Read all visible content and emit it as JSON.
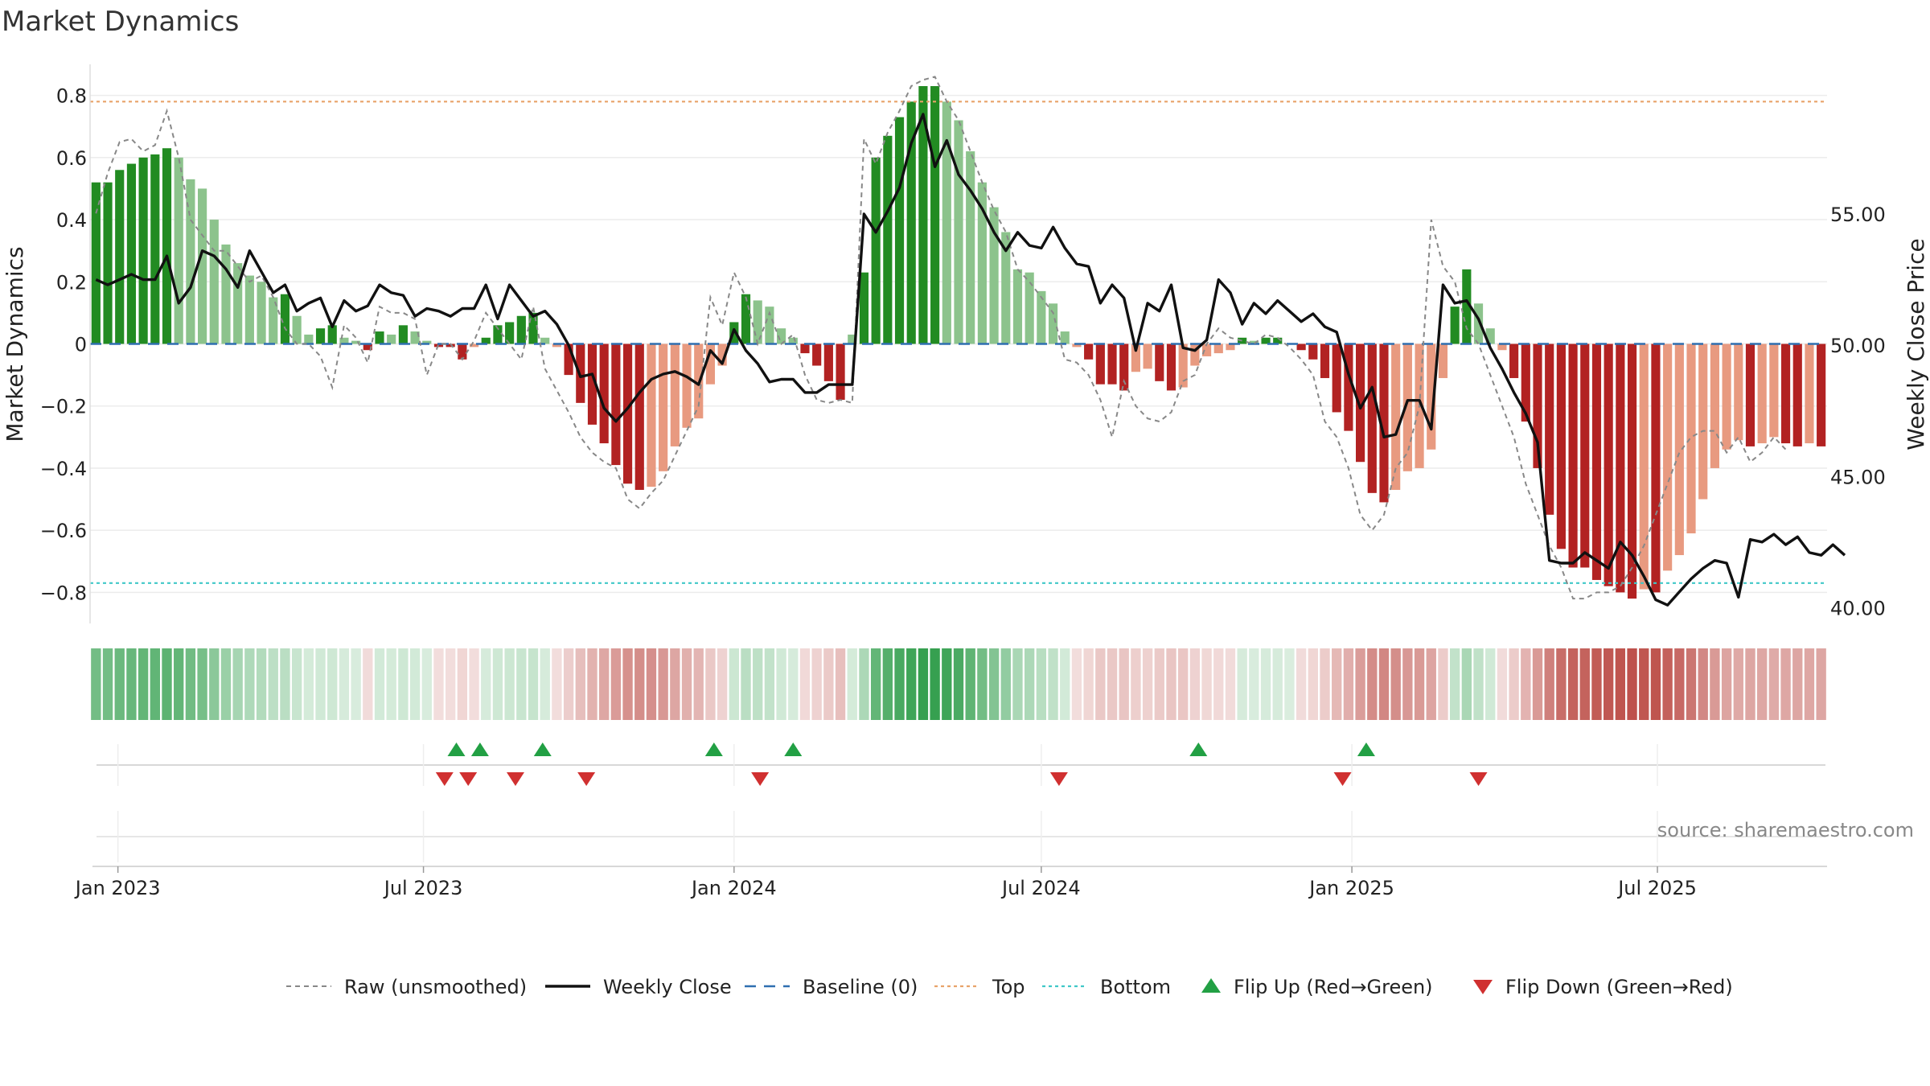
{
  "title": "Market Dynamics",
  "source_text": "source: sharemaestro.com",
  "chart_data": {
    "type": "bar",
    "title": "Market Dynamics",
    "ylabel": "Market Dynamics",
    "y2label": "Weekly Close Price",
    "ylim": [
      -0.9,
      0.9
    ],
    "y2lim": [
      39.4,
      60.7
    ],
    "yticks": [
      {
        "v": 0.8,
        "label": "0.8"
      },
      {
        "v": 0.6,
        "label": "0.6"
      },
      {
        "v": 0.4,
        "label": "0.4"
      },
      {
        "v": 0.2,
        "label": "0.2"
      },
      {
        "v": 0,
        "label": "0"
      },
      {
        "v": -0.2,
        "label": "−0.2"
      },
      {
        "v": -0.4,
        "label": "−0.4"
      },
      {
        "v": -0.6,
        "label": "−0.6"
      },
      {
        "v": -0.8,
        "label": "−0.8"
      }
    ],
    "y2ticks": [
      {
        "v": 55,
        "label": "55.00"
      },
      {
        "v": 50,
        "label": "50.00"
      },
      {
        "v": 45,
        "label": "45.00"
      },
      {
        "v": 40,
        "label": "40.00"
      }
    ],
    "xticks": [
      {
        "date": "2023-01-01",
        "label": "Jan 2023"
      },
      {
        "date": "2023-07-01",
        "label": "Jul 2023"
      },
      {
        "date": "2024-01-01",
        "label": "Jan 2024"
      },
      {
        "date": "2024-07-01",
        "label": "Jul 2024"
      },
      {
        "date": "2025-01-01",
        "label": "Jan 2025"
      },
      {
        "date": "2025-07-01",
        "label": "Jul 2025"
      }
    ],
    "start_week": "2022-12-19",
    "dynamics": [
      0.52,
      0.52,
      0.56,
      0.58,
      0.6,
      0.61,
      0.63,
      0.6,
      0.53,
      0.5,
      0.4,
      0.32,
      0.26,
      0.22,
      0.2,
      0.15,
      0.16,
      0.09,
      0.03,
      0.05,
      0.06,
      0.02,
      0.01,
      -0.02,
      0.04,
      0.03,
      0.06,
      0.04,
      0.01,
      -0.01,
      -0.01,
      -0.05,
      -0.01,
      0.02,
      0.06,
      0.07,
      0.09,
      0.1,
      0.02,
      -0.01,
      -0.1,
      -0.19,
      -0.26,
      -0.32,
      -0.39,
      -0.45,
      -0.47,
      -0.46,
      -0.41,
      -0.33,
      -0.27,
      -0.24,
      -0.13,
      -0.07,
      0.07,
      0.16,
      0.14,
      0.12,
      0.05,
      0.02,
      -0.03,
      -0.07,
      -0.12,
      -0.18,
      0.03,
      0.23,
      0.6,
      0.67,
      0.73,
      0.78,
      0.83,
      0.83,
      0.78,
      0.72,
      0.62,
      0.52,
      0.44,
      0.36,
      0.24,
      0.23,
      0.17,
      0.13,
      0.04,
      -0.01,
      -0.05,
      -0.13,
      -0.13,
      -0.15,
      -0.09,
      -0.08,
      -0.12,
      -0.15,
      -0.14,
      -0.07,
      -0.04,
      -0.03,
      -0.02,
      0.02,
      0.01,
      0.02,
      0.02,
      0.0,
      -0.02,
      -0.05,
      -0.11,
      -0.22,
      -0.28,
      -0.38,
      -0.48,
      -0.51,
      -0.47,
      -0.41,
      -0.4,
      -0.34,
      -0.11,
      0.12,
      0.24,
      0.13,
      0.05,
      -0.02,
      -0.11,
      -0.25,
      -0.4,
      -0.55,
      -0.66,
      -0.72,
      -0.72,
      -0.76,
      -0.78,
      -0.8,
      -0.82,
      -0.79,
      -0.8,
      -0.73,
      -0.68,
      -0.61,
      -0.5,
      -0.4,
      -0.34,
      -0.31,
      -0.33,
      -0.32,
      -0.3,
      -0.32,
      -0.33,
      -0.32,
      -0.33
    ],
    "raw": [
      0.42,
      0.55,
      0.65,
      0.66,
      0.62,
      0.64,
      0.75,
      0.6,
      0.4,
      0.35,
      0.3,
      0.3,
      0.25,
      0.2,
      0.22,
      0.15,
      0.05,
      0.0,
      0.0,
      -0.04,
      -0.14,
      0.06,
      0.02,
      -0.06,
      0.12,
      0.1,
      0.1,
      0.08,
      -0.1,
      0.0,
      0.0,
      -0.05,
      0.01,
      0.1,
      0.05,
      0.0,
      -0.05,
      0.12,
      -0.08,
      -0.15,
      -0.22,
      -0.3,
      -0.35,
      -0.38,
      -0.4,
      -0.5,
      -0.53,
      -0.48,
      -0.44,
      -0.36,
      -0.28,
      -0.2,
      0.15,
      0.06,
      0.23,
      0.15,
      0.0,
      0.1,
      0.0,
      0.03,
      -0.1,
      -0.18,
      -0.19,
      -0.18,
      -0.19,
      0.66,
      0.58,
      0.68,
      0.75,
      0.83,
      0.85,
      0.86,
      0.78,
      0.72,
      0.62,
      0.52,
      0.43,
      0.36,
      0.24,
      0.2,
      0.15,
      0.1,
      -0.05,
      -0.06,
      -0.1,
      -0.18,
      -0.3,
      -0.12,
      -0.2,
      -0.24,
      -0.25,
      -0.22,
      -0.12,
      -0.1,
      0.0,
      0.05,
      0.02,
      0.01,
      0.0,
      0.03,
      0.02,
      -0.01,
      -0.05,
      -0.1,
      -0.25,
      -0.3,
      -0.4,
      -0.55,
      -0.6,
      -0.55,
      -0.4,
      -0.35,
      -0.2,
      0.4,
      0.25,
      0.2,
      0.05,
      0.0,
      -0.1,
      -0.2,
      -0.3,
      -0.45,
      -0.55,
      -0.65,
      -0.72,
      -0.82,
      -0.82,
      -0.8,
      -0.8,
      -0.78,
      -0.72,
      -0.65,
      -0.55,
      -0.45,
      -0.35,
      -0.3,
      -0.28,
      -0.28,
      -0.35,
      -0.3,
      -0.38,
      -0.35,
      -0.3,
      -0.34
    ],
    "close": [
      52.5,
      52.3,
      52.5,
      52.7,
      52.5,
      52.5,
      53.4,
      51.6,
      52.2,
      53.6,
      53.4,
      52.9,
      52.2,
      53.6,
      52.8,
      52.0,
      52.3,
      51.3,
      51.6,
      51.8,
      50.7,
      51.7,
      51.3,
      51.5,
      52.3,
      52.0,
      51.9,
      51.1,
      51.4,
      51.3,
      51.1,
      51.4,
      51.4,
      52.3,
      51.0,
      52.3,
      51.7,
      51.1,
      51.3,
      50.8,
      50.0,
      48.8,
      48.9,
      47.6,
      47.1,
      47.6,
      48.2,
      48.7,
      48.9,
      49.0,
      48.8,
      48.5,
      49.8,
      49.3,
      50.6,
      49.8,
      49.3,
      48.6,
      48.7,
      48.7,
      48.2,
      48.2,
      48.5,
      48.5,
      48.5,
      55.0,
      54.3,
      55.1,
      56.0,
      57.7,
      58.8,
      56.8,
      57.8,
      56.5,
      55.9,
      55.2,
      54.3,
      53.6,
      54.3,
      53.8,
      53.7,
      54.5,
      53.7,
      53.1,
      53.0,
      51.6,
      52.3,
      51.8,
      49.8,
      51.6,
      51.3,
      52.3,
      49.9,
      49.8,
      50.2,
      52.5,
      52.0,
      50.8,
      51.6,
      51.2,
      51.7,
      51.3,
      50.9,
      51.2,
      50.7,
      50.5,
      48.9,
      47.6,
      48.4,
      46.5,
      46.6,
      47.9,
      47.9,
      46.8,
      52.3,
      51.6,
      51.7,
      51.0,
      49.9,
      49.1,
      48.2,
      47.4,
      46.3,
      41.8,
      41.7,
      41.7,
      42.1,
      41.8,
      41.5,
      42.5,
      42.0,
      41.2,
      40.3,
      40.1,
      40.6,
      41.1,
      41.5,
      41.8,
      41.7,
      40.4,
      42.6,
      42.5,
      42.8,
      42.4,
      42.7,
      42.1,
      42.0,
      42.4,
      42.0
    ],
    "top_line": 0.78,
    "bottom_line": -0.77,
    "baseline": 0,
    "flip_up_weeks": [
      30.5,
      32.5,
      37.8,
      52.3,
      59.0,
      93.3,
      107.5
    ],
    "flip_down_weeks": [
      29.5,
      31.5,
      35.5,
      41.5,
      56.2,
      81.5,
      105.5,
      117.0
    ],
    "legend": [
      {
        "label": "Raw (unsmoothed)",
        "style": "dashed-gray"
      },
      {
        "label": "Weekly Close",
        "style": "solid-black"
      },
      {
        "label": "Baseline (0)",
        "style": "dashed-blue"
      },
      {
        "label": "Top",
        "style": "dotted-orange"
      },
      {
        "label": "Bottom",
        "style": "dotted-cyan"
      },
      {
        "label": "Flip Up (Red→Green)",
        "style": "triangle-up-green"
      },
      {
        "label": "Flip Down (Green→Red)",
        "style": "triangle-down-red"
      }
    ],
    "grid": true,
    "legend_position": "bottom-center"
  },
  "colors": {
    "dark_green": "#228b22",
    "light_green": "#8cc38c",
    "dark_red": "#b22222",
    "light_red": "#e89a80",
    "close_line": "#111111",
    "raw_line": "#888888",
    "baseline": "#2f6fb0",
    "top": "#e8a36a",
    "bottom": "#40c8c8",
    "flip_up": "#22a044",
    "flip_down": "#d03030"
  }
}
